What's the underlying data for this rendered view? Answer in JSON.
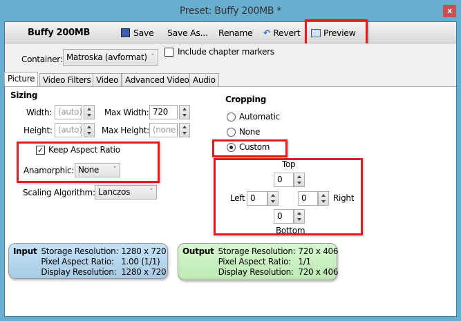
{
  "window": {
    "title": "Preset: Buffy 200MB *",
    "close": "x"
  },
  "toolbar": {
    "preset_name": "Buffy 200MB",
    "save": "Save",
    "save_as": "Save As...",
    "rename": "Rename",
    "revert": "Revert",
    "preview": "Preview"
  },
  "container": {
    "label": "Container:",
    "value": "Matroska (avformat)",
    "chapter_markers_label": "Include chapter markers",
    "chapter_markers_checked": false
  },
  "tabs": [
    "Picture",
    "Video Filters",
    "Video",
    "Advanced Video",
    "Audio"
  ],
  "sizing": {
    "heading": "Sizing",
    "width_label": "Width:",
    "width_placeholder": "(auto)",
    "height_label": "Height:",
    "height_placeholder": "(auto)",
    "max_width_label": "Max Width:",
    "max_width_value": "720",
    "max_height_label": "Max Height:",
    "max_height_placeholder": "(none)",
    "keep_aspect_label": "Keep Aspect Ratio",
    "keep_aspect_checked": true,
    "anamorphic_label": "Anamorphic:",
    "anamorphic_value": "None",
    "scaling_label": "Scaling Algorithm:",
    "scaling_value": "Lanczos"
  },
  "cropping": {
    "heading": "Cropping",
    "options": [
      "Automatic",
      "None",
      "Custom"
    ],
    "selected": "Custom",
    "top_label": "Top",
    "left_label": "Left",
    "right_label": "Right",
    "bottom_label": "Bottom",
    "top": "0",
    "left": "0",
    "right": "0",
    "bottom": "0"
  },
  "input": {
    "title": "Input",
    "rows": [
      [
        "Storage Resolution:",
        "1280 x 720"
      ],
      [
        "Pixel Aspect Ratio:",
        "1.00 (1/1)"
      ],
      [
        "Display Resolution:",
        "1280 x 720"
      ]
    ],
    "color": "#b3d7f0"
  },
  "output": {
    "title": "Output",
    "rows": [
      [
        "Storage Resolution:",
        "720 x 406"
      ],
      [
        "Pixel Aspect Ratio:",
        "1/1"
      ],
      [
        "Display Resolution:",
        "720 x 406"
      ]
    ],
    "color": "#c8f0c0"
  },
  "colors": {
    "highlight": "#e21b1b",
    "window_frame": "#6aaecf"
  }
}
